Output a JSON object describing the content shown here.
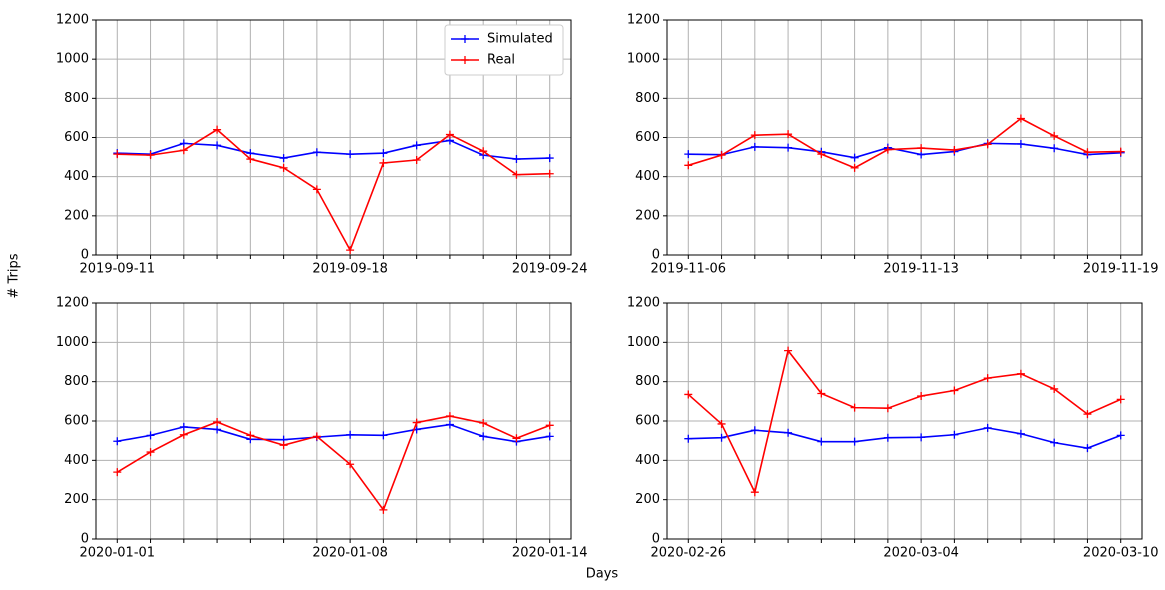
{
  "ylabel": "# Trips",
  "xlabel": "Days",
  "chart_data": [
    {
      "type": "line",
      "categories": [
        "2019-09-11",
        null,
        null,
        null,
        null,
        null,
        null,
        "2019-09-18",
        null,
        null,
        null,
        null,
        null,
        "2019-09-24"
      ],
      "series": [
        {
          "name": "Simulated",
          "color": "#0000ff",
          "values": [
            520,
            515,
            570,
            560,
            520,
            495,
            525,
            515,
            520,
            560,
            585,
            510,
            490,
            495
          ]
        },
        {
          "name": "Real",
          "color": "#ff0000",
          "values": [
            515,
            510,
            535,
            640,
            490,
            445,
            335,
            25,
            470,
            485,
            615,
            530,
            410,
            415
          ]
        }
      ],
      "ylim": [
        0,
        1200
      ],
      "yticks": [
        0,
        200,
        400,
        600,
        800,
        1000,
        1200
      ],
      "grid": true,
      "legend": "upper right"
    },
    {
      "type": "line",
      "categories": [
        "2019-11-06",
        null,
        null,
        null,
        null,
        null,
        null,
        "2019-11-13",
        null,
        null,
        null,
        null,
        null,
        "2019-11-19"
      ],
      "series": [
        {
          "color": "#0000ff",
          "values": [
            515,
            512,
            552,
            548,
            527,
            497,
            548,
            513,
            528,
            570,
            567,
            545,
            513,
            522
          ]
        },
        {
          "color": "#ff0000",
          "values": [
            458,
            510,
            612,
            617,
            515,
            445,
            538,
            546,
            536,
            565,
            697,
            608,
            525,
            528
          ]
        }
      ],
      "ylim": [
        0,
        1200
      ],
      "yticks": [
        0,
        200,
        400,
        600,
        800,
        1000,
        1200
      ],
      "grid": true
    },
    {
      "type": "line",
      "categories": [
        "2020-01-01",
        null,
        null,
        null,
        null,
        null,
        null,
        "2020-01-08",
        null,
        null,
        null,
        null,
        null,
        "2020-01-14"
      ],
      "series": [
        {
          "color": "#0000ff",
          "values": [
            497,
            527,
            570,
            557,
            507,
            505,
            518,
            530,
            527,
            557,
            582,
            522,
            495,
            522
          ]
        },
        {
          "color": "#ff0000",
          "values": [
            340,
            442,
            530,
            595,
            527,
            477,
            522,
            380,
            148,
            592,
            625,
            590,
            512,
            578
          ]
        }
      ],
      "ylim": [
        0,
        1200
      ],
      "yticks": [
        0,
        200,
        400,
        600,
        800,
        1000,
        1200
      ],
      "grid": true
    },
    {
      "type": "line",
      "categories": [
        "2020-02-26",
        null,
        null,
        null,
        null,
        null,
        null,
        "2020-03-04",
        null,
        null,
        null,
        null,
        null,
        "2020-03-10"
      ],
      "series": [
        {
          "color": "#0000ff",
          "values": [
            510,
            515,
            553,
            540,
            495,
            495,
            515,
            517,
            530,
            565,
            535,
            490,
            462,
            527
          ]
        },
        {
          "color": "#ff0000",
          "values": [
            735,
            585,
            238,
            958,
            740,
            668,
            665,
            727,
            755,
            818,
            840,
            763,
            635,
            710
          ]
        }
      ],
      "ylim": [
        0,
        1200
      ],
      "yticks": [
        0,
        200,
        400,
        600,
        800,
        1000,
        1200
      ],
      "grid": true
    }
  ]
}
